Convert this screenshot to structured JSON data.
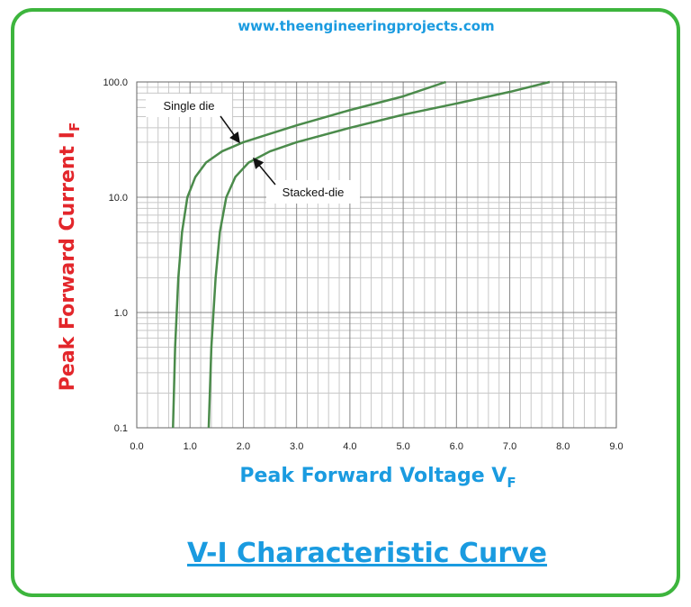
{
  "header": {
    "site": "www.theengineeringprojects.com"
  },
  "chart_data": {
    "type": "line",
    "y_label": "Peak Forward Current I",
    "y_label_sub": "F",
    "x_label": "Peak Forward Voltage V",
    "x_label_sub": "F",
    "ylog": true,
    "grid": true,
    "minor_grid": true,
    "xlim": [
      0,
      9
    ],
    "ylim": [
      0.1,
      100
    ],
    "xticks": [
      {
        "value": 0,
        "label": "0.0"
      },
      {
        "value": 1,
        "label": "1.0"
      },
      {
        "value": 2,
        "label": "2.0"
      },
      {
        "value": 3,
        "label": "3.0"
      },
      {
        "value": 4,
        "label": "4.0"
      },
      {
        "value": 5,
        "label": "5.0"
      },
      {
        "value": 6,
        "label": "6.0"
      },
      {
        "value": 7,
        "label": "7.0"
      },
      {
        "value": 8,
        "label": "8.0"
      },
      {
        "value": 9,
        "label": "9.0"
      }
    ],
    "yticks": [
      0.1,
      {
        "value": 1,
        "label": "1.0"
      },
      {
        "value": 10,
        "label": "10.0"
      },
      {
        "value": 100,
        "label": "100.0"
      }
    ],
    "series": [
      {
        "name": "Single die",
        "color": "#4b8b4b",
        "x": [
          0.68,
          0.72,
          0.78,
          0.85,
          0.95,
          1.1,
          1.3,
          1.6,
          2.0,
          3.0,
          4.0,
          5.0,
          5.8
        ],
        "values": [
          0.1,
          0.5,
          2,
          5,
          10,
          15,
          20,
          25,
          30,
          42,
          57,
          75,
          100
        ]
      },
      {
        "name": "Stacked-die",
        "color": "#4b8b4b",
        "x": [
          1.35,
          1.4,
          1.48,
          1.56,
          1.68,
          1.85,
          2.1,
          2.5,
          3.0,
          4.0,
          5.0,
          6.0,
          7.0,
          7.75
        ],
        "values": [
          0.1,
          0.5,
          2,
          5,
          10,
          15,
          20,
          25,
          30,
          40,
          52,
          65,
          82,
          100
        ]
      }
    ]
  },
  "caption": "V-I Characteristic Curve"
}
